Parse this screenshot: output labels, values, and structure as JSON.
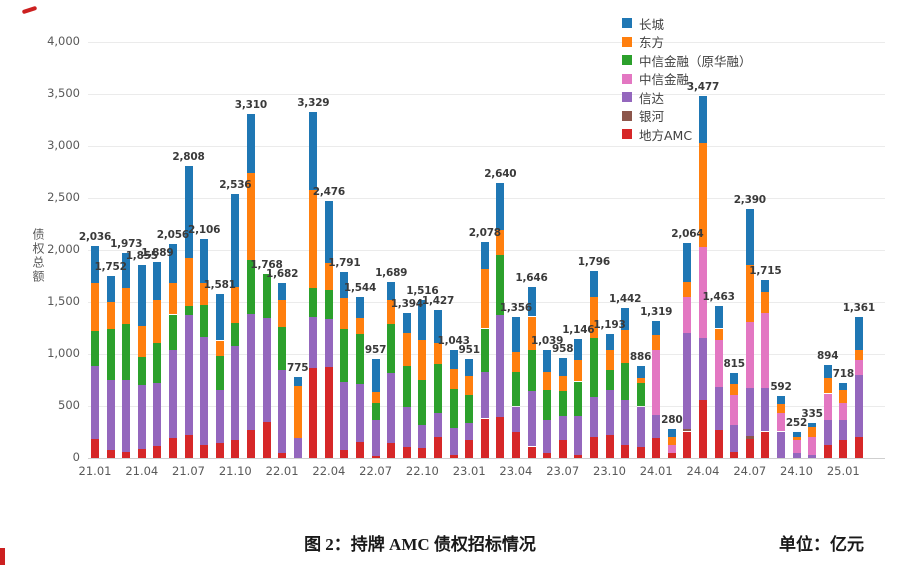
{
  "caption": {
    "figure_label": "图 2：持牌 AMC 债权招标情况",
    "unit_label": "单位：亿元"
  },
  "chart_data": {
    "type": "bar",
    "stacked": true,
    "ylabel": "债权总额",
    "ylim": [
      0,
      4000
    ],
    "ytick_step": 500,
    "grid": true,
    "legend_position": "top-right",
    "categories": [
      "21.01",
      "21.02",
      "21.03",
      "21.04",
      "21.05",
      "21.06",
      "21.07",
      "21.08",
      "21.09",
      "21.10",
      "21.11",
      "21.12",
      "22.01",
      "22.02",
      "22.03",
      "22.04",
      "22.05",
      "22.06",
      "22.07",
      "22.08",
      "22.09",
      "22.10",
      "22.11",
      "22.12",
      "23.01",
      "23.02",
      "23.03",
      "23.04",
      "23.05",
      "23.06",
      "23.07",
      "23.08",
      "23.09",
      "23.10",
      "23.11",
      "23.12",
      "24.01",
      "24.02",
      "24.03",
      "24.04",
      "24.05",
      "24.06",
      "24.07",
      "24.08",
      "24.09",
      "24.10",
      "24.11",
      "24.12",
      "25.01",
      "25.02"
    ],
    "x_tick_labels": [
      "21.01",
      "21.04",
      "21.07",
      "21.10",
      "22.01",
      "22.04",
      "22.07",
      "22.10",
      "23.01",
      "23.04",
      "23.07",
      "23.10",
      "24.01",
      "24.04",
      "24.07",
      "24.10",
      "25.01"
    ],
    "totals": [
      2036,
      1752,
      1973,
      1855,
      1889,
      2056,
      2808,
      2106,
      1581,
      2536,
      3310,
      1768,
      1682,
      775,
      3329,
      2476,
      1791,
      1544,
      957,
      1689,
      1394,
      1516,
      1427,
      1043,
      951,
      2078,
      2640,
      1356,
      1646,
      1039,
      958,
      1146,
      1796,
      1193,
      1442,
      886,
      1319,
      280,
      2064,
      3477,
      1463,
      815,
      2390,
      1715,
      592,
      252,
      335,
      894,
      718,
      1361
    ],
    "series": [
      {
        "name": "长城",
        "color": "#1f77b4",
        "values": [
          356,
          252,
          338,
          585,
          369,
          376,
          888,
          421,
          451,
          891,
          570,
          0,
          162,
          80,
          754,
          596,
          256,
          199,
          322,
          169,
          194,
          381,
          317,
          183,
          166,
          258,
          450,
          336,
          286,
          209,
          173,
          206,
          246,
          158,
          207,
          116,
          134,
          75,
          369,
          447,
          218,
          105,
          535,
          120,
          72,
          47,
          40,
          129,
          63,
          321
        ]
      },
      {
        "name": "东方",
        "color": "#ff7f0e",
        "values": [
          460,
          255,
          345,
          300,
          415,
          300,
          460,
          210,
          145,
          345,
          835,
          0,
          260,
          505,
          940,
          265,
          290,
          155,
          110,
          235,
          315,
          385,
          205,
          200,
          180,
          575,
          240,
          190,
          320,
          175,
          145,
          205,
          400,
          190,
          325,
          50,
          145,
          80,
          145,
          1000,
          110,
          105,
          545,
          200,
          90,
          30,
          90,
          145,
          130,
          95
        ]
      },
      {
        "name": "中信金融（原华融）",
        "color": "#2ca02c",
        "values": [
          335,
          490,
          540,
          270,
          385,
          345,
          85,
          310,
          335,
          220,
          520,
          423,
          415,
          0,
          280,
          275,
          515,
          480,
          160,
          465,
          390,
          435,
          475,
          375,
          270,
          415,
          575,
          335,
          400,
          290,
          240,
          335,
          560,
          190,
          350,
          225,
          0,
          0,
          0,
          0,
          0,
          0,
          0,
          0,
          0,
          0,
          0,
          0,
          0,
          0
        ]
      },
      {
        "name": "中信金融",
        "color": "#e377c2",
        "values": [
          0,
          0,
          0,
          0,
          0,
          0,
          0,
          0,
          0,
          0,
          0,
          0,
          0,
          0,
          0,
          0,
          0,
          0,
          0,
          0,
          0,
          0,
          0,
          0,
          0,
          0,
          0,
          0,
          0,
          0,
          0,
          0,
          0,
          0,
          0,
          0,
          625,
          80,
          350,
          875,
          450,
          290,
          640,
          725,
          175,
          130,
          175,
          255,
          160,
          145
        ]
      },
      {
        "name": "信达",
        "color": "#9467bd",
        "values": [
          700,
          675,
          690,
          615,
          605,
          845,
          1155,
          1040,
          510,
          905,
          1115,
          1000,
          795,
          190,
          490,
          465,
          655,
          555,
          345,
          675,
          385,
          215,
          225,
          255,
          160,
          450,
          980,
          240,
          530,
          320,
          225,
          370,
          385,
          435,
          435,
          385,
          225,
          0,
          925,
          595,
          415,
          255,
          460,
          415,
          255,
          45,
          30,
          240,
          190,
          595
        ]
      },
      {
        "name": "银河",
        "color": "#8c564b",
        "values": [
          0,
          0,
          0,
          0,
          0,
          0,
          0,
          0,
          0,
          0,
          0,
          0,
          0,
          0,
          0,
          0,
          0,
          0,
          0,
          0,
          0,
          0,
          0,
          0,
          0,
          0,
          0,
          0,
          0,
          0,
          0,
          0,
          0,
          0,
          0,
          0,
          0,
          0,
          20,
          0,
          0,
          0,
          30,
          0,
          0,
          0,
          0,
          0,
          0,
          0
        ]
      },
      {
        "name": "地方AMC",
        "color": "#d62728",
        "values": [
          185,
          80,
          60,
          85,
          115,
          190,
          220,
          125,
          140,
          175,
          270,
          345,
          50,
          0,
          865,
          875,
          75,
          155,
          20,
          145,
          110,
          100,
          205,
          30,
          175,
          380,
          395,
          255,
          110,
          45,
          175,
          30,
          205,
          220,
          125,
          110,
          190,
          45,
          255,
          560,
          270,
          60,
          180,
          255,
          0,
          0,
          0,
          125,
          175,
          205
        ]
      }
    ],
    "stack_order_bottom_to_top": [
      "地方AMC",
      "银河",
      "信达",
      "中信金融",
      "中信金融（原华融）",
      "东方",
      "长城"
    ]
  }
}
